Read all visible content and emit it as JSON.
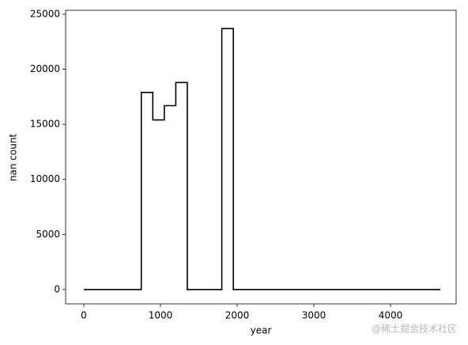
{
  "chart_data": {
    "type": "line",
    "xlabel": "year",
    "ylabel": "nan count",
    "x": [
      0,
      750,
      750,
      900,
      900,
      1050,
      1050,
      1200,
      1200,
      1350,
      1350,
      1800,
      1800,
      1950,
      1950,
      4650
    ],
    "values": [
      0,
      0,
      17900,
      17900,
      15400,
      15400,
      16700,
      16700,
      18800,
      18800,
      0,
      0,
      23700,
      23700,
      0,
      0
    ],
    "color": "#000000",
    "xlim": [
      -237,
      4856
    ],
    "xticks": [
      0,
      1000,
      2000,
      3000,
      4000
    ],
    "ylim": [
      -1300,
      25360
    ],
    "yticks": [
      0,
      5000,
      10000,
      15000,
      20000,
      25000
    ],
    "grid": false,
    "watermark": "@稀土掘金技术社区"
  }
}
